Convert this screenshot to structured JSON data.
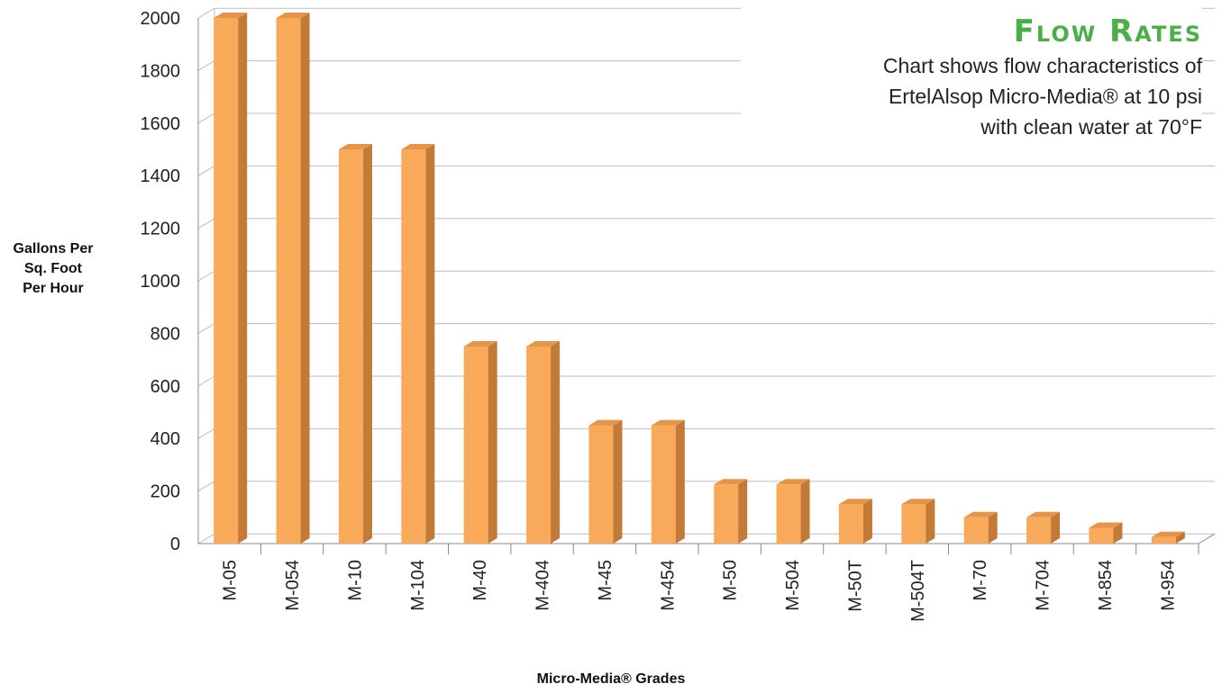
{
  "chart_data": {
    "type": "bar",
    "title": "Flow Rates",
    "subtitle_lines": [
      "Chart shows flow characteristics of",
      "ErtelAlsop Micro-Media® at 10 psi",
      "with clean water at 70°F"
    ],
    "ylabel_lines": [
      "Gallons Per",
      "Sq. Foot",
      "Per Hour"
    ],
    "xlabel": "Micro-Media® Grades",
    "categories": [
      "M-05",
      "M-054",
      "M-10",
      "M-104",
      "M-40",
      "M-404",
      "M-45",
      "M-454",
      "M-50",
      "M-504",
      "M-50T",
      "M-504T",
      "M-70",
      "M-704",
      "M-854",
      "M-954"
    ],
    "values": [
      2000,
      2000,
      1500,
      1500,
      750,
      750,
      450,
      450,
      225,
      225,
      150,
      150,
      100,
      100,
      60,
      25
    ],
    "ylim": [
      0,
      2000
    ],
    "yticks": [
      0,
      200,
      400,
      600,
      800,
      1000,
      1200,
      1400,
      1600,
      1800,
      2000
    ],
    "grid": true,
    "bar_color": "#f8a95a",
    "bar_side_color": "#c27a36",
    "bar_top_color": "#e59548",
    "title_color": "#4cae46"
  }
}
